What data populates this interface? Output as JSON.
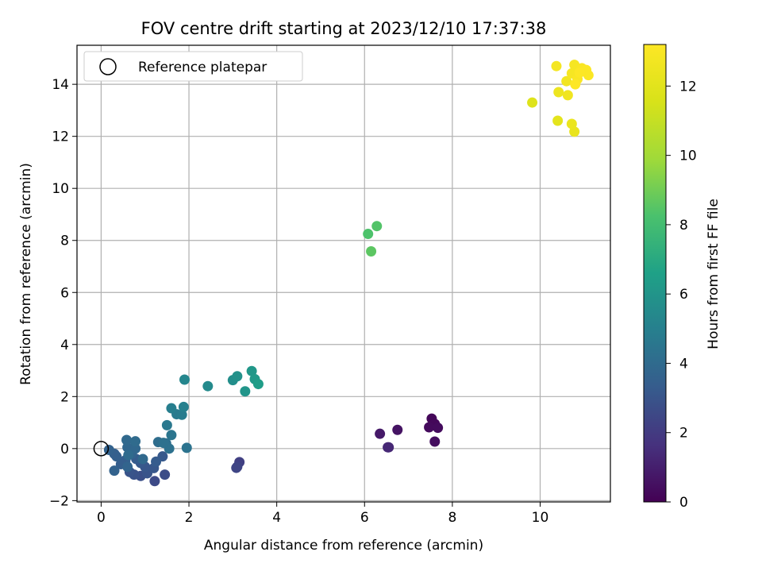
{
  "chart_data": {
    "type": "scatter",
    "title": "FOV centre drift starting at 2023/12/10 17:37:38",
    "xlabel": "Angular distance from reference (arcmin)",
    "ylabel": "Rotation from reference (arcmin)",
    "xlim": [
      -0.55,
      11.6
    ],
    "ylim": [
      -2.05,
      15.5
    ],
    "xticks": [
      "0",
      "2",
      "4",
      "6",
      "8",
      "10"
    ],
    "yticks": [
      "−2",
      "0",
      "2",
      "4",
      "6",
      "8",
      "10",
      "12",
      "14"
    ],
    "grid": true,
    "legend": {
      "position": "top-left",
      "entries": [
        "Reference platepar"
      ]
    },
    "reference_point": {
      "x": 0,
      "y": 0,
      "label": "Reference platepar"
    },
    "colorbar": {
      "label": "Hours from first FF file",
      "range": [
        0,
        13.2
      ],
      "ticks": [
        "0",
        "2",
        "4",
        "6",
        "8",
        "10",
        "12"
      ],
      "colormap": "viridis"
    },
    "points": [
      {
        "x": 7.53,
        "y": 1.15,
        "h": 0.2
      },
      {
        "x": 7.6,
        "y": 0.95,
        "h": 0.25
      },
      {
        "x": 7.47,
        "y": 0.82,
        "h": 0.3
      },
      {
        "x": 7.67,
        "y": 0.8,
        "h": 0.35
      },
      {
        "x": 7.6,
        "y": 0.27,
        "h": 0.4
      },
      {
        "x": 6.75,
        "y": 0.72,
        "h": 0.6
      },
      {
        "x": 6.35,
        "y": 0.57,
        "h": 0.8
      },
      {
        "x": 6.55,
        "y": 0.05,
        "h": 1.2
      },
      {
        "x": 6.53,
        "y": 0.05,
        "h": 1.3
      },
      {
        "x": 3.15,
        "y": -0.52,
        "h": 2.2
      },
      {
        "x": 3.1,
        "y": -0.7,
        "h": 2.3
      },
      {
        "x": 3.08,
        "y": -0.74,
        "h": 2.4
      },
      {
        "x": 1.22,
        "y": -1.25,
        "h": 2.6
      },
      {
        "x": 1.45,
        "y": -1.0,
        "h": 2.7
      },
      {
        "x": 0.9,
        "y": -1.05,
        "h": 2.8
      },
      {
        "x": 0.75,
        "y": -1.0,
        "h": 2.9
      },
      {
        "x": 1.05,
        "y": -0.95,
        "h": 3.0
      },
      {
        "x": 0.65,
        "y": -0.9,
        "h": 3.0
      },
      {
        "x": 1.2,
        "y": -0.75,
        "h": 3.1
      },
      {
        "x": 1.0,
        "y": -0.7,
        "h": 3.1
      },
      {
        "x": 0.9,
        "y": -0.55,
        "h": 3.2
      },
      {
        "x": 1.4,
        "y": -0.3,
        "h": 3.2
      },
      {
        "x": 1.25,
        "y": -0.5,
        "h": 3.3
      },
      {
        "x": 0.8,
        "y": -0.4,
        "h": 3.3
      },
      {
        "x": 0.55,
        "y": -0.45,
        "h": 3.4
      },
      {
        "x": 0.45,
        "y": -0.6,
        "h": 3.4
      },
      {
        "x": 0.35,
        "y": -0.3,
        "h": 3.5
      },
      {
        "x": 0.3,
        "y": -0.2,
        "h": 3.5
      },
      {
        "x": 0.18,
        "y": -0.05,
        "h": 3.6
      },
      {
        "x": 0.3,
        "y": -0.85,
        "h": 3.6
      },
      {
        "x": 0.6,
        "y": -0.7,
        "h": 3.7
      },
      {
        "x": 0.7,
        "y": -0.2,
        "h": 3.7
      },
      {
        "x": 0.6,
        "y": 0.05,
        "h": 3.8
      },
      {
        "x": 0.78,
        "y": 0.0,
        "h": 3.8
      },
      {
        "x": 0.95,
        "y": -0.4,
        "h": 3.9
      },
      {
        "x": 0.58,
        "y": 0.33,
        "h": 3.9
      },
      {
        "x": 0.78,
        "y": 0.28,
        "h": 4.0
      },
      {
        "x": 0.62,
        "y": -0.25,
        "h": 4.0
      },
      {
        "x": 1.3,
        "y": 0.25,
        "h": 4.1
      },
      {
        "x": 1.48,
        "y": 0.2,
        "h": 4.2
      },
      {
        "x": 1.55,
        "y": 0.0,
        "h": 4.3
      },
      {
        "x": 1.42,
        "y": 0.22,
        "h": 4.3
      },
      {
        "x": 1.95,
        "y": 0.03,
        "h": 4.4
      },
      {
        "x": 1.6,
        "y": 0.52,
        "h": 4.5
      },
      {
        "x": 1.5,
        "y": 0.9,
        "h": 4.6
      },
      {
        "x": 1.72,
        "y": 1.32,
        "h": 4.7
      },
      {
        "x": 1.84,
        "y": 1.3,
        "h": 4.8
      },
      {
        "x": 1.6,
        "y": 1.55,
        "h": 4.9
      },
      {
        "x": 1.88,
        "y": 1.6,
        "h": 5.0
      },
      {
        "x": 1.9,
        "y": 2.65,
        "h": 5.3
      },
      {
        "x": 2.43,
        "y": 2.4,
        "h": 5.5
      },
      {
        "x": 3.0,
        "y": 2.63,
        "h": 5.7
      },
      {
        "x": 3.1,
        "y": 2.78,
        "h": 5.8
      },
      {
        "x": 3.28,
        "y": 2.2,
        "h": 6.0
      },
      {
        "x": 3.43,
        "y": 2.98,
        "h": 6.1
      },
      {
        "x": 3.5,
        "y": 2.67,
        "h": 6.2
      },
      {
        "x": 3.58,
        "y": 2.48,
        "h": 6.4
      },
      {
        "x": 6.08,
        "y": 8.25,
        "h": 8.3
      },
      {
        "x": 6.28,
        "y": 8.55,
        "h": 8.4
      },
      {
        "x": 6.15,
        "y": 7.58,
        "h": 8.6
      },
      {
        "x": 9.82,
        "y": 13.3,
        "h": 11.8
      },
      {
        "x": 10.4,
        "y": 12.6,
        "h": 12.1
      },
      {
        "x": 10.78,
        "y": 12.18,
        "h": 12.3
      },
      {
        "x": 10.72,
        "y": 12.48,
        "h": 12.4
      },
      {
        "x": 10.42,
        "y": 13.7,
        "h": 12.5
      },
      {
        "x": 10.63,
        "y": 13.58,
        "h": 12.6
      },
      {
        "x": 10.6,
        "y": 14.12,
        "h": 12.7
      },
      {
        "x": 10.37,
        "y": 14.7,
        "h": 12.8
      },
      {
        "x": 10.78,
        "y": 14.75,
        "h": 12.9
      },
      {
        "x": 10.72,
        "y": 14.42,
        "h": 12.9
      },
      {
        "x": 10.95,
        "y": 14.62,
        "h": 13.0
      },
      {
        "x": 10.85,
        "y": 14.2,
        "h": 13.0
      },
      {
        "x": 11.05,
        "y": 14.55,
        "h": 13.1
      },
      {
        "x": 11.1,
        "y": 14.35,
        "h": 13.1
      },
      {
        "x": 10.9,
        "y": 14.45,
        "h": 13.15
      },
      {
        "x": 10.8,
        "y": 14.0,
        "h": 13.2
      }
    ]
  }
}
